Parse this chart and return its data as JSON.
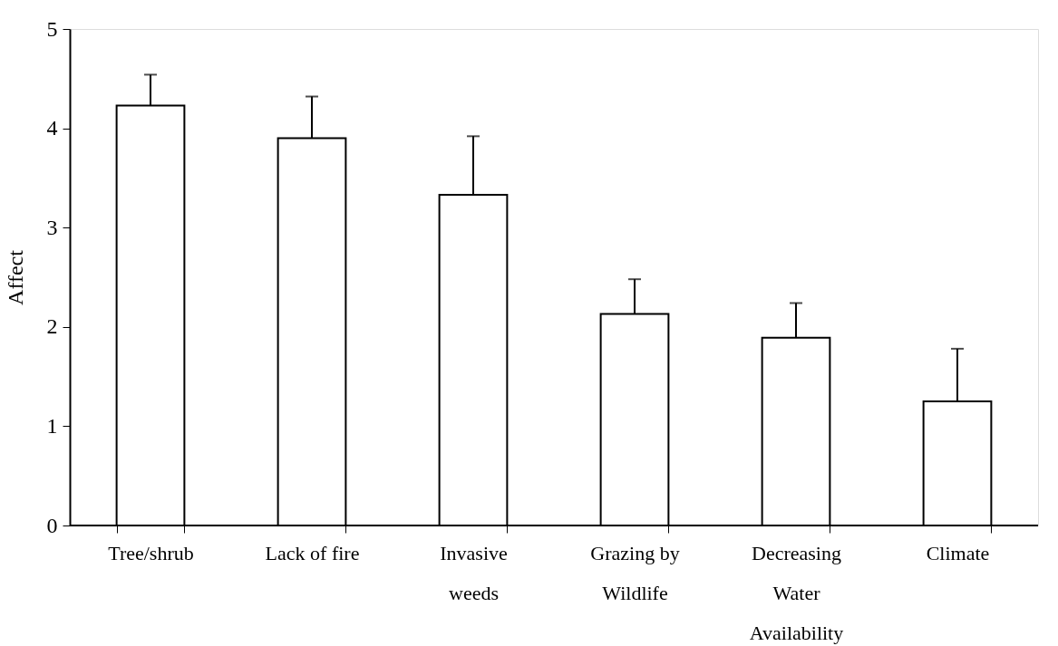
{
  "chart_data": {
    "type": "bar",
    "ylabel": "Affect",
    "categories": [
      "Tree/shrub",
      "Lack of fire",
      "Invasive\nweeds",
      "Grazing by\nWildlife",
      "Decreasing\nWater\nAvailability",
      "Climate"
    ],
    "values": [
      4.23,
      3.9,
      3.33,
      2.13,
      1.89,
      1.25
    ],
    "errors": [
      [
        4.23,
        4.54
      ],
      [
        3.9,
        4.32
      ],
      [
        3.33,
        3.92
      ],
      [
        2.13,
        2.48
      ],
      [
        1.89,
        2.24
      ],
      [
        1.25,
        1.78
      ]
    ],
    "color": "#ffffff",
    "ylim": [
      0,
      5
    ],
    "yticks": [
      0,
      1,
      2,
      3,
      4,
      5
    ],
    "grid": false
  }
}
